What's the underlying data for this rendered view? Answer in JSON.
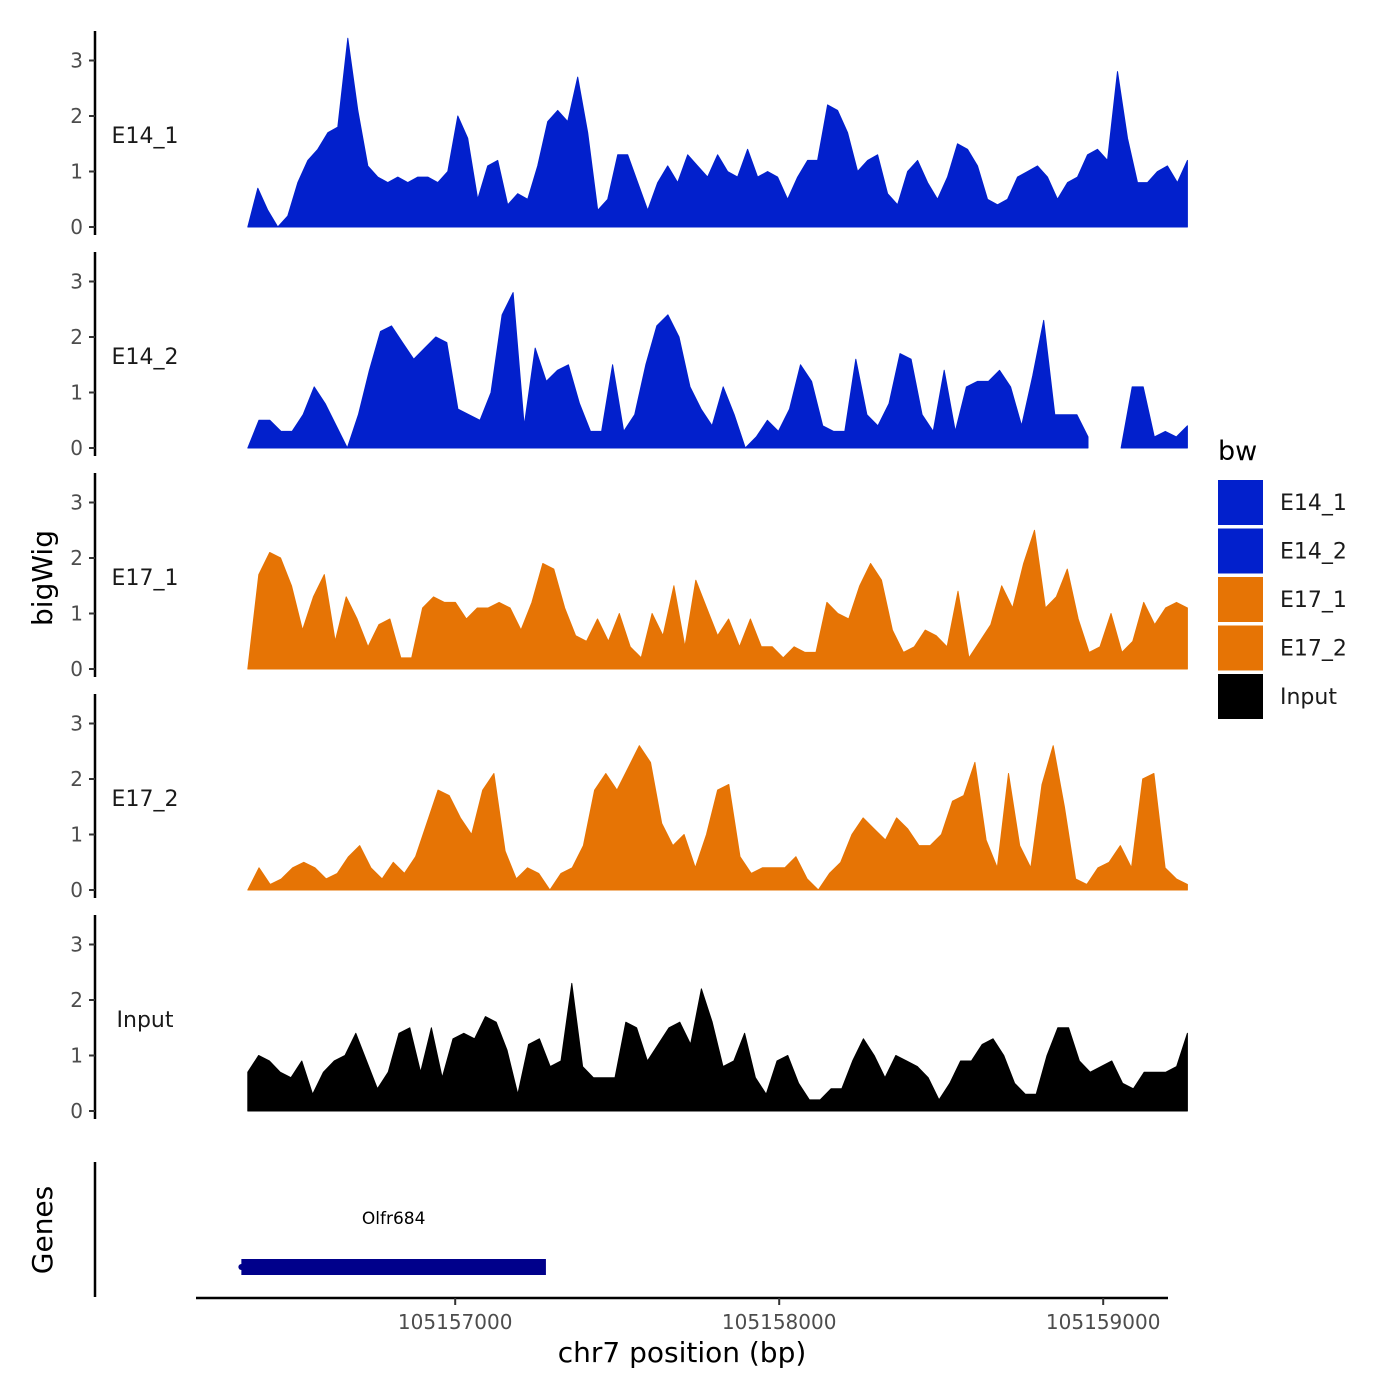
{
  "chart_data": {
    "type": "area",
    "title": "",
    "xlabel": "chr7 position (bp)",
    "ylabel": "bigWig",
    "genes_label": "Genes",
    "xlim": [
      104895000,
      104898000
    ],
    "x_ticks": [
      {
        "value": 104895800,
        "label": "105157000"
      },
      {
        "value": 104896800,
        "label": "105158000"
      },
      {
        "value": 104897800,
        "label": "105159000"
      }
    ],
    "ylim": [
      0,
      3.5
    ],
    "y_ticks": [
      0,
      1,
      2,
      3
    ],
    "legend": {
      "title": "bw",
      "position": "right",
      "items": [
        {
          "label": "E14_1",
          "color": "#0220CC"
        },
        {
          "label": "E14_2",
          "color": "#0220CC"
        },
        {
          "label": "E17_1",
          "color": "#E67405"
        },
        {
          "label": "E17_2",
          "color": "#E67405"
        },
        {
          "label": "Input",
          "color": "#000000"
        }
      ]
    },
    "x_start": 104895160,
    "x_end": 104898060,
    "series": [
      {
        "name": "E14_1",
        "color": "#0220CC",
        "values": [
          0,
          0.7,
          0.3,
          0,
          0.2,
          0.8,
          1.2,
          1.4,
          1.7,
          1.8,
          3.4,
          2.1,
          1.1,
          0.9,
          0.8,
          0.9,
          0.8,
          0.9,
          0.9,
          0.8,
          1.0,
          2.0,
          1.6,
          0.5,
          1.1,
          1.2,
          0.4,
          0.6,
          0.5,
          1.1,
          1.9,
          2.1,
          1.9,
          2.7,
          1.7,
          0.3,
          0.5,
          1.3,
          1.3,
          0.8,
          0.3,
          0.8,
          1.1,
          0.8,
          1.3,
          1.1,
          0.9,
          1.3,
          1.0,
          0.9,
          1.4,
          0.9,
          1.0,
          0.9,
          0.5,
          0.9,
          1.2,
          1.2,
          2.2,
          2.1,
          1.7,
          1.0,
          1.2,
          1.3,
          0.6,
          0.4,
          1.0,
          1.2,
          0.8,
          0.5,
          0.9,
          1.5,
          1.4,
          1.1,
          0.5,
          0.4,
          0.5,
          0.9,
          1.0,
          1.1,
          0.9,
          0.5,
          0.8,
          0.9,
          1.3,
          1.4,
          1.2,
          2.8,
          1.6,
          0.8,
          0.8,
          1.0,
          1.1,
          0.8,
          1.2
        ]
      },
      {
        "name": "E14_2",
        "color": "#0220CC",
        "values": [
          0,
          0.5,
          0.5,
          0.3,
          0.3,
          0.6,
          1.1,
          0.8,
          0.4,
          0.0,
          0.6,
          1.4,
          2.1,
          2.2,
          1.9,
          1.6,
          1.8,
          2.0,
          1.9,
          0.7,
          0.6,
          0.5,
          1.0,
          2.4,
          2.8,
          0.4,
          1.8,
          1.2,
          1.4,
          1.5,
          0.8,
          0.3,
          0.3,
          1.5,
          0.3,
          0.6,
          1.5,
          2.2,
          2.4,
          2.0,
          1.1,
          0.7,
          0.4,
          1.1,
          0.6,
          0.0,
          0.2,
          0.5,
          0.3,
          0.7,
          1.5,
          1.2,
          0.4,
          0.3,
          0.3,
          1.6,
          0.6,
          0.4,
          0.8,
          1.7,
          1.6,
          0.6,
          0.3,
          1.4,
          0.3,
          1.1,
          1.2,
          1.2,
          1.4,
          1.1,
          0.4,
          1.3,
          2.3,
          0.6,
          0.6,
          0.6,
          0.2,
          null,
          null,
          0.0,
          1.1,
          1.1,
          0.2,
          0.3,
          0.2,
          0.4
        ]
      },
      {
        "name": "E17_1",
        "color": "#E67405",
        "values": [
          0,
          1.7,
          2.1,
          2.0,
          1.5,
          0.7,
          1.3,
          1.7,
          0.5,
          1.3,
          0.9,
          0.4,
          0.8,
          0.9,
          0.2,
          0.2,
          1.1,
          1.3,
          1.2,
          1.2,
          0.9,
          1.1,
          1.1,
          1.2,
          1.1,
          0.7,
          1.2,
          1.9,
          1.8,
          1.1,
          0.6,
          0.5,
          0.9,
          0.5,
          1.0,
          0.4,
          0.2,
          1.0,
          0.6,
          1.5,
          0.4,
          1.6,
          1.1,
          0.6,
          0.9,
          0.4,
          0.9,
          0.4,
          0.4,
          0.2,
          0.4,
          0.3,
          0.3,
          1.2,
          1.0,
          0.9,
          1.5,
          1.9,
          1.6,
          0.7,
          0.3,
          0.4,
          0.7,
          0.6,
          0.4,
          1.4,
          0.2,
          0.5,
          0.8,
          1.5,
          1.1,
          1.9,
          2.5,
          1.1,
          1.3,
          1.8,
          0.9,
          0.3,
          0.4,
          1.0,
          0.3,
          0.5,
          1.2,
          0.8,
          1.1,
          1.2,
          1.1
        ]
      },
      {
        "name": "E17_2",
        "color": "#E67405",
        "values": [
          0,
          0.4,
          0.1,
          0.2,
          0.4,
          0.5,
          0.4,
          0.2,
          0.3,
          0.6,
          0.8,
          0.4,
          0.2,
          0.5,
          0.3,
          0.6,
          1.2,
          1.8,
          1.7,
          1.3,
          1.0,
          1.8,
          2.1,
          0.7,
          0.2,
          0.4,
          0.3,
          0.0,
          0.3,
          0.4,
          0.8,
          1.8,
          2.1,
          1.8,
          2.2,
          2.6,
          2.3,
          1.2,
          0.8,
          1.0,
          0.4,
          1.0,
          1.8,
          1.9,
          0.6,
          0.3,
          0.4,
          0.4,
          0.4,
          0.6,
          0.2,
          0.0,
          0.3,
          0.5,
          1.0,
          1.3,
          1.1,
          0.9,
          1.3,
          1.1,
          0.8,
          0.8,
          1.0,
          1.6,
          1.7,
          2.3,
          0.9,
          0.4,
          2.1,
          0.8,
          0.4,
          1.9,
          2.6,
          1.5,
          0.2,
          0.1,
          0.4,
          0.5,
          0.8,
          0.4,
          2.0,
          2.1,
          0.4,
          0.2,
          0.1
        ]
      },
      {
        "name": "Input",
        "color": "#000000",
        "values": [
          0.7,
          1.0,
          0.9,
          0.7,
          0.6,
          0.9,
          0.3,
          0.7,
          0.9,
          1.0,
          1.4,
          0.9,
          0.4,
          0.7,
          1.4,
          1.5,
          0.7,
          1.5,
          0.6,
          1.3,
          1.4,
          1.3,
          1.7,
          1.6,
          1.1,
          0.3,
          1.2,
          1.3,
          0.8,
          0.9,
          2.3,
          0.8,
          0.6,
          0.6,
          0.6,
          1.6,
          1.5,
          0.9,
          1.2,
          1.5,
          1.6,
          1.2,
          2.2,
          1.6,
          0.8,
          0.9,
          1.4,
          0.6,
          0.3,
          0.9,
          1.0,
          0.5,
          0.2,
          0.2,
          0.4,
          0.4,
          0.9,
          1.3,
          1.0,
          0.6,
          1.0,
          0.9,
          0.8,
          0.6,
          0.2,
          0.5,
          0.9,
          0.9,
          1.2,
          1.3,
          1.0,
          0.5,
          0.3,
          0.3,
          1.0,
          1.5,
          1.5,
          0.9,
          0.7,
          0.8,
          0.9,
          0.5,
          0.4,
          0.7,
          0.7,
          0.7,
          0.8,
          1.4
        ]
      }
    ],
    "genes": [
      {
        "name": "Olfr684",
        "start": 104895140,
        "end": 104896080,
        "color": "#00008B"
      }
    ]
  }
}
